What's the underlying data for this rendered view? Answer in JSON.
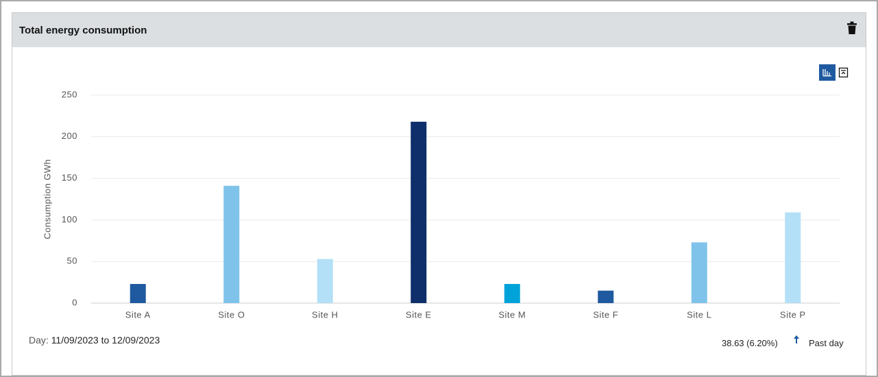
{
  "chart_data": {
    "type": "bar",
    "title": "Total energy consumption",
    "y_label": "Consumption GWh",
    "categories": [
      "Site A",
      "Site O",
      "Site H",
      "Site E",
      "Site M",
      "Site F",
      "Site L",
      "Site P"
    ],
    "values": [
      23,
      141,
      53,
      218,
      23,
      15,
      73,
      109
    ],
    "colors": [
      "#1f5aa0",
      "#7fc3ea",
      "#b3e0f7",
      "#0f2f6b",
      "#00a3d9",
      "#1f5aa0",
      "#7fc3ea",
      "#b3e0f7"
    ],
    "ylim": [
      0,
      250
    ],
    "yticks": [
      0,
      50,
      100,
      150,
      200,
      250
    ],
    "grid": true
  },
  "footer": {
    "period_label": "Day:",
    "period": "11/09/2023 to 12/09/2023",
    "change": "38.63 (6.20%)",
    "comparison": "Past day"
  }
}
